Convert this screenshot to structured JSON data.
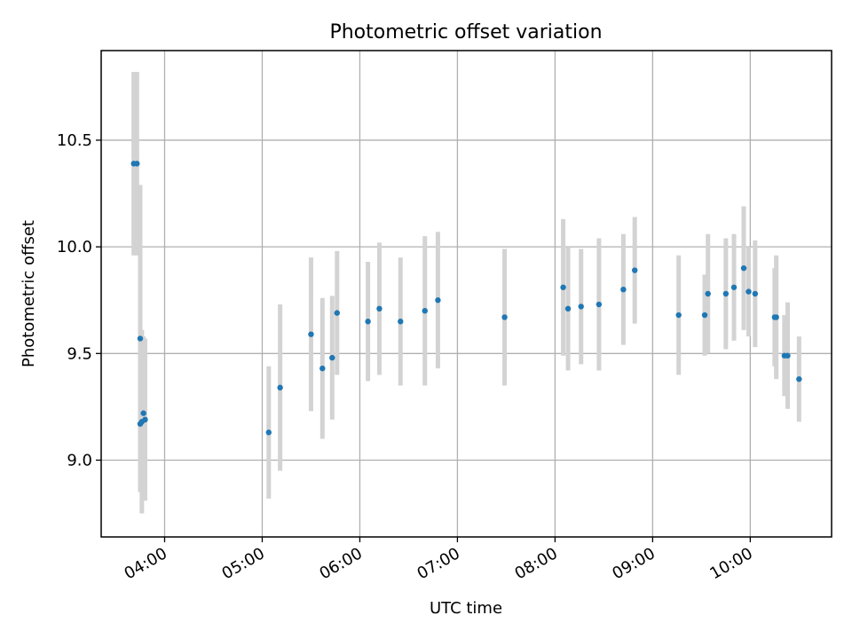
{
  "chart_data": {
    "type": "scatter",
    "title": "Photometric offset variation",
    "xlabel": "UTC time",
    "ylabel": "Photometric offset",
    "xlim": [
      "03:21",
      "10:50"
    ],
    "ylim": [
      8.64,
      10.92
    ],
    "x_ticks": [
      "04:00",
      "05:00",
      "06:00",
      "07:00",
      "08:00",
      "09:00",
      "10:00"
    ],
    "y_ticks": [
      9.0,
      9.5,
      10.0,
      10.5
    ],
    "y_tick_labels": [
      "9.0",
      "9.5",
      "10.0",
      "10.5"
    ],
    "grid": true,
    "series": [
      {
        "points": [
          {
            "x": "03:41",
            "y": 10.39,
            "yerr": 0.43
          },
          {
            "x": "03:43",
            "y": 10.39,
            "yerr": 0.43
          },
          {
            "x": "03:45",
            "y": 9.57,
            "yerr": 0.72
          },
          {
            "x": "03:45",
            "y": 9.17,
            "yerr": 0.32
          },
          {
            "x": "03:46",
            "y": 9.18,
            "yerr": 0.43
          },
          {
            "x": "03:47",
            "y": 9.22,
            "yerr": 0.36
          },
          {
            "x": "03:48",
            "y": 9.19,
            "yerr": 0.38
          },
          {
            "x": "05:04",
            "y": 9.13,
            "yerr": 0.31
          },
          {
            "x": "05:11",
            "y": 9.34,
            "yerr": 0.39
          },
          {
            "x": "05:30",
            "y": 9.59,
            "yerr": 0.36
          },
          {
            "x": "05:37",
            "y": 9.43,
            "yerr": 0.33
          },
          {
            "x": "05:43",
            "y": 9.48,
            "yerr": 0.29
          },
          {
            "x": "05:46",
            "y": 9.69,
            "yerr": 0.29
          },
          {
            "x": "06:05",
            "y": 9.65,
            "yerr": 0.28
          },
          {
            "x": "06:12",
            "y": 9.71,
            "yerr": 0.31
          },
          {
            "x": "06:25",
            "y": 9.65,
            "yerr": 0.3
          },
          {
            "x": "06:40",
            "y": 9.7,
            "yerr": 0.35
          },
          {
            "x": "06:48",
            "y": 9.75,
            "yerr": 0.32
          },
          {
            "x": "07:29",
            "y": 9.67,
            "yerr": 0.32
          },
          {
            "x": "08:05",
            "y": 9.81,
            "yerr": 0.32
          },
          {
            "x": "08:08",
            "y": 9.71,
            "yerr": 0.29
          },
          {
            "x": "08:16",
            "y": 9.72,
            "yerr": 0.27
          },
          {
            "x": "08:27",
            "y": 9.73,
            "yerr": 0.31
          },
          {
            "x": "08:42",
            "y": 9.8,
            "yerr": 0.26
          },
          {
            "x": "08:49",
            "y": 9.89,
            "yerr": 0.25
          },
          {
            "x": "09:16",
            "y": 9.68,
            "yerr": 0.28
          },
          {
            "x": "09:32",
            "y": 9.68,
            "yerr": 0.19
          },
          {
            "x": "09:34",
            "y": 9.78,
            "yerr": 0.28
          },
          {
            "x": "09:45",
            "y": 9.78,
            "yerr": 0.26
          },
          {
            "x": "09:50",
            "y": 9.81,
            "yerr": 0.25
          },
          {
            "x": "09:56",
            "y": 9.9,
            "yerr": 0.29
          },
          {
            "x": "09:59",
            "y": 9.79,
            "yerr": 0.21
          },
          {
            "x": "10:03",
            "y": 9.78,
            "yerr": 0.25
          },
          {
            "x": "10:15",
            "y": 9.67,
            "yerr": 0.23
          },
          {
            "x": "10:16",
            "y": 9.67,
            "yerr": 0.29
          },
          {
            "x": "10:21",
            "y": 9.49,
            "yerr": 0.19
          },
          {
            "x": "10:23",
            "y": 9.49,
            "yerr": 0.25
          },
          {
            "x": "10:30",
            "y": 9.38,
            "yerr": 0.2
          }
        ]
      }
    ],
    "colors": {
      "points": "#1f77b4",
      "errorbars": "#d3d3d3",
      "grid": "#b0b0b0",
      "axes": "#000000"
    }
  }
}
